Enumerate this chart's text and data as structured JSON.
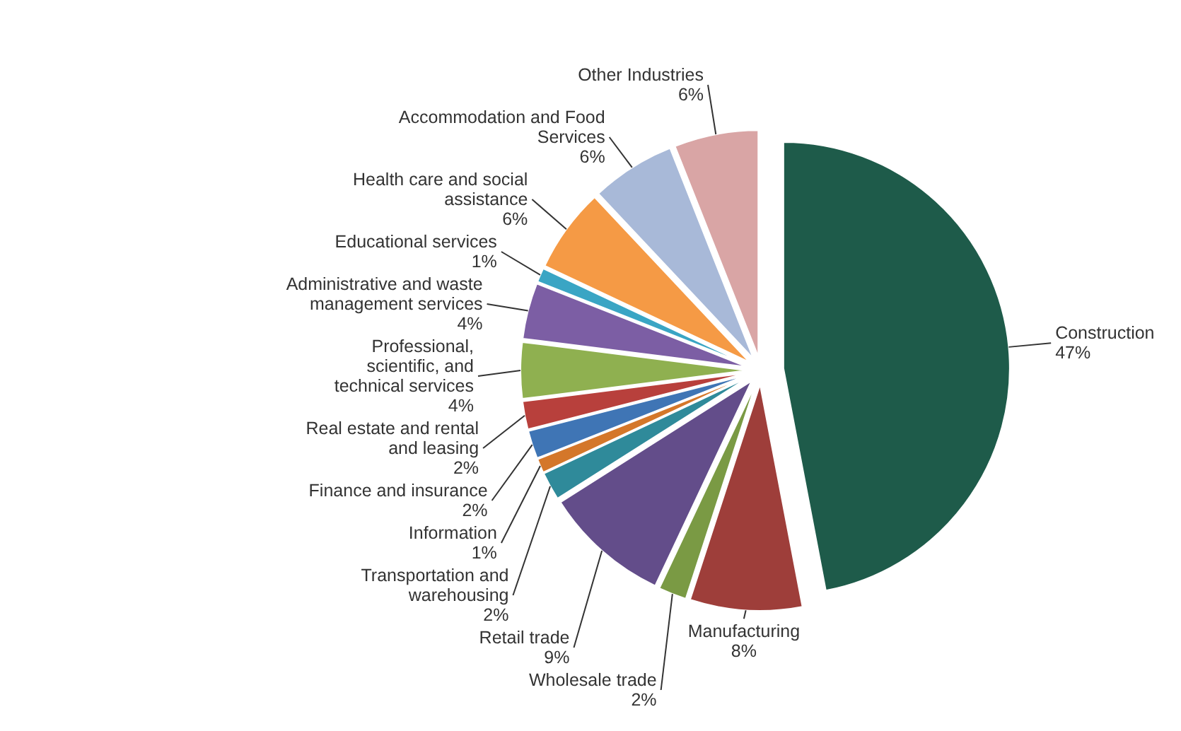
{
  "chart_data": {
    "type": "pie",
    "categories": [
      "Construction",
      "Manufacturing",
      "Wholesale trade",
      "Retail trade",
      "Transportation and warehousing",
      "Information",
      "Finance and insurance",
      "Real estate and rental and leasing",
      "Professional, scientific, and technical services",
      "Administrative and waste management services",
      "Educational services",
      "Health care and social assistance",
      "Accommodation and Food Services",
      "Other Industries"
    ],
    "values": [
      47,
      8,
      2,
      9,
      2,
      1,
      2,
      2,
      4,
      4,
      1,
      6,
      6,
      6
    ],
    "value_labels": [
      "47%",
      "8%",
      "2%",
      "9%",
      "2%",
      "1%",
      "2%",
      "2%",
      "4%",
      "4%",
      "1%",
      "6%",
      "6%",
      "6%"
    ],
    "colors": [
      "#1e5b4a",
      "#9e3e3a",
      "#7a9a44",
      "#634d8a",
      "#2f8a9a",
      "#d4772a",
      "#3f75b5",
      "#b8403c",
      "#8fb050",
      "#7c5ea4",
      "#3aa5c4",
      "#f59a45",
      "#a8b9d8",
      "#d9a5a5"
    ],
    "data_labels": true
  }
}
